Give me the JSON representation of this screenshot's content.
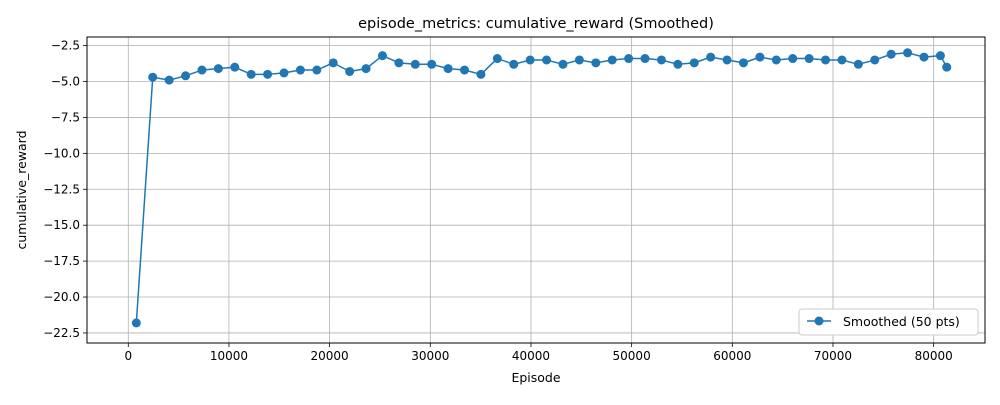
{
  "chart_data": {
    "type": "line",
    "title": "episode_metrics: cumulative_reward (Smoothed)",
    "xlabel": "Episode",
    "ylabel": "cumulative_reward",
    "xlim": [
      -4100,
      85100
    ],
    "ylim": [
      -23.2,
      -1.9
    ],
    "xticks": [
      0,
      10000,
      20000,
      30000,
      40000,
      50000,
      60000,
      70000,
      80000
    ],
    "yticks": [
      -2.5,
      -5.0,
      -7.5,
      -10.0,
      -12.5,
      -15.0,
      -17.5,
      -20.0,
      -22.5
    ],
    "xtick_labels": [
      "0",
      "10000",
      "20000",
      "30000",
      "40000",
      "50000",
      "60000",
      "70000",
      "80000"
    ],
    "ytick_labels": [
      "−2.5",
      "−5.0",
      "−7.5",
      "−10.0",
      "−12.5",
      "−15.0",
      "−17.5",
      "−20.0",
      "−22.5"
    ],
    "grid": true,
    "legend_position": "lower-right",
    "colors": {
      "series": "#1f77b4",
      "grid": "#b0b0b0",
      "axes": "#000000"
    },
    "series": [
      {
        "name": "Smoothed (50 pts)",
        "marker": "circle",
        "x": [
          800,
          2430,
          4060,
          5690,
          7320,
          8950,
          10580,
          12210,
          13840,
          15470,
          17100,
          18730,
          20360,
          21990,
          23620,
          25250,
          26880,
          28510,
          30140,
          31770,
          33400,
          35030,
          36660,
          38290,
          39920,
          41550,
          43180,
          44810,
          46440,
          48070,
          49700,
          51330,
          52960,
          54590,
          56220,
          57850,
          59480,
          61110,
          62740,
          64370,
          66000,
          67630,
          69260,
          70890,
          72520,
          74150,
          75780,
          77410,
          79040,
          80670,
          81300
        ],
        "y": [
          -21.8,
          -4.7,
          -4.9,
          -4.6,
          -4.2,
          -4.1,
          -4.0,
          -4.5,
          -4.5,
          -4.4,
          -4.2,
          -4.2,
          -3.7,
          -4.3,
          -4.1,
          -3.2,
          -3.7,
          -3.8,
          -3.8,
          -4.1,
          -4.2,
          -4.5,
          -3.4,
          -3.8,
          -3.5,
          -3.5,
          -3.8,
          -3.5,
          -3.7,
          -3.5,
          -3.4,
          -3.4,
          -3.5,
          -3.8,
          -3.7,
          -3.3,
          -3.5,
          -3.7,
          -3.3,
          -3.5,
          -3.4,
          -3.4,
          -3.5,
          -3.5,
          -3.8,
          -3.5,
          -3.1,
          -3.0,
          -3.3,
          -3.2,
          -4.0
        ]
      }
    ]
  }
}
